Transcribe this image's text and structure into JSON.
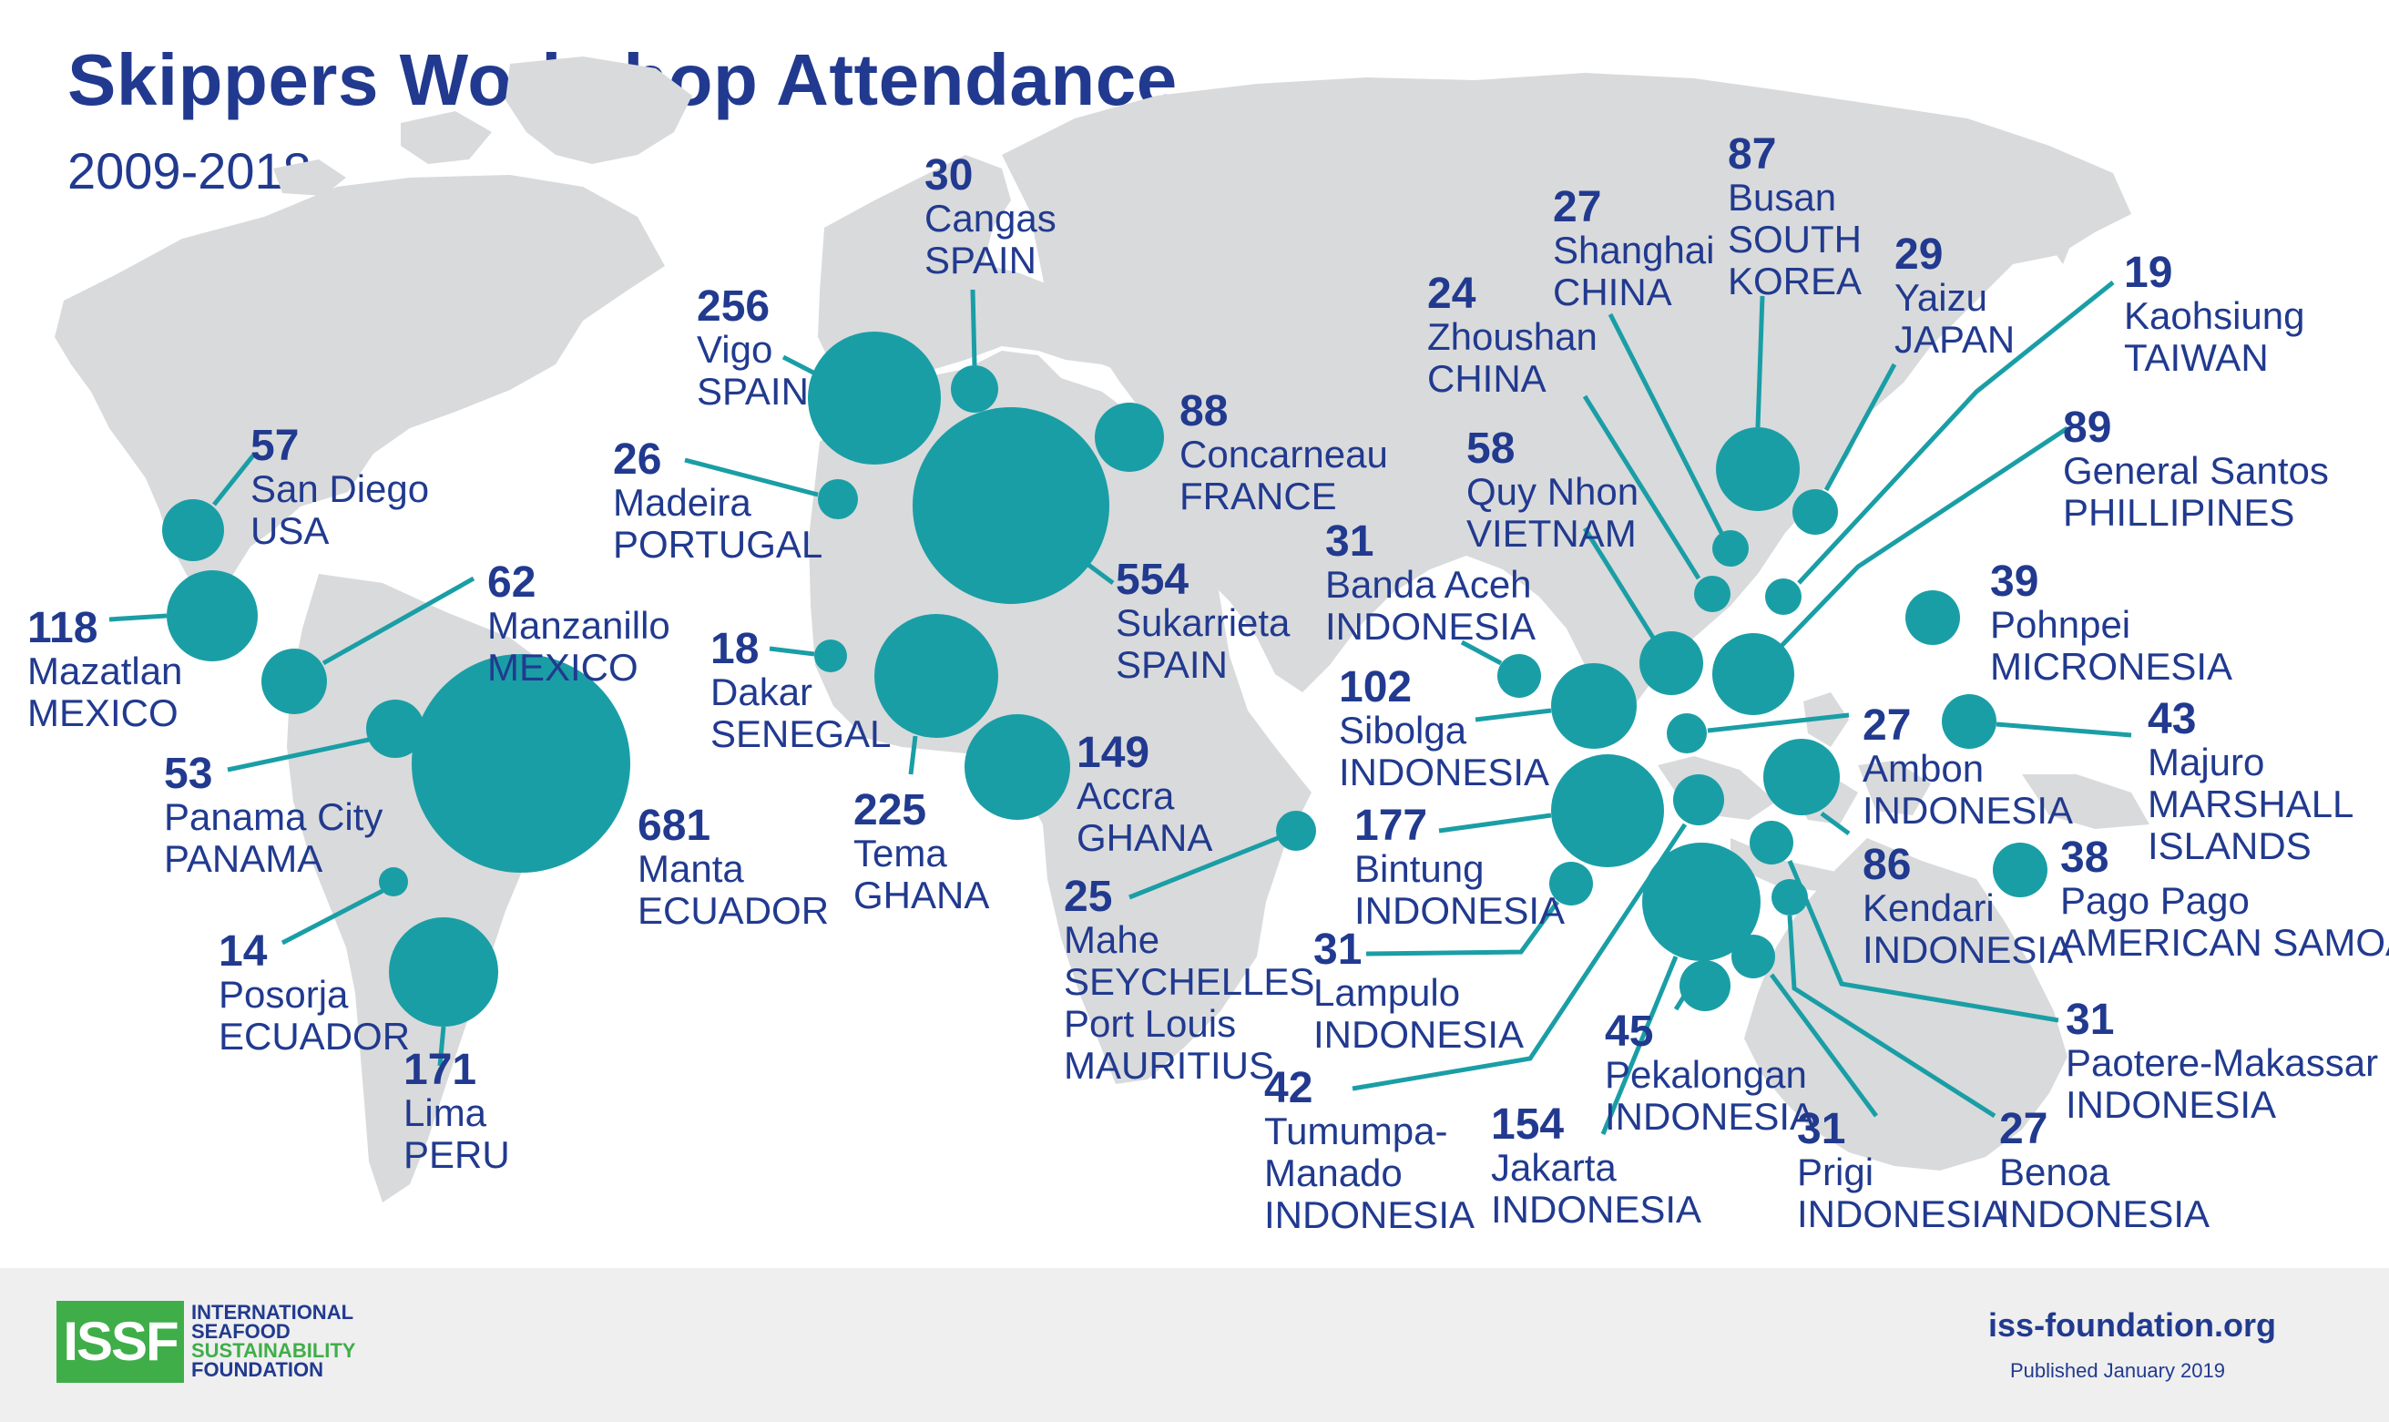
{
  "header": {
    "title": "Skippers Workshop Attendance",
    "subtitle": "2009-2018"
  },
  "map_style": {
    "land_color": "#d9dadb",
    "bubble_color": "#1a9ea6",
    "leader_color": "#1a9ea6",
    "text_color": "#213a8f"
  },
  "locations": [
    {
      "id": "san-diego",
      "value": "57",
      "lines": [
        "San Diego",
        "USA"
      ]
    },
    {
      "id": "mazatlan",
      "value": "118",
      "lines": [
        "Mazatlan",
        "MEXICO"
      ]
    },
    {
      "id": "manzanillo",
      "value": "62",
      "lines": [
        "Manzanillo",
        "MEXICO"
      ]
    },
    {
      "id": "panama-city",
      "value": "53",
      "lines": [
        "Panama City",
        "PANAMA"
      ]
    },
    {
      "id": "manta",
      "value": "681",
      "lines": [
        "Manta",
        "ECUADOR"
      ]
    },
    {
      "id": "posorja",
      "value": "14",
      "lines": [
        "Posorja",
        "ECUADOR"
      ]
    },
    {
      "id": "lima",
      "value": "171",
      "lines": [
        "Lima",
        "PERU"
      ]
    },
    {
      "id": "vigo",
      "value": "256",
      "lines": [
        "Vigo",
        "SPAIN"
      ]
    },
    {
      "id": "cangas",
      "value": "30",
      "lines": [
        "Cangas",
        "SPAIN"
      ]
    },
    {
      "id": "madeira",
      "value": "26",
      "lines": [
        "Madeira",
        "PORTUGAL"
      ]
    },
    {
      "id": "sukarrieta",
      "value": "554",
      "lines": [
        "Sukarrieta",
        "SPAIN"
      ]
    },
    {
      "id": "concarneau",
      "value": "88",
      "lines": [
        "Concarneau",
        "FRANCE"
      ]
    },
    {
      "id": "dakar",
      "value": "18",
      "lines": [
        "Dakar",
        "SENEGAL"
      ]
    },
    {
      "id": "tema",
      "value": "225",
      "lines": [
        "Tema",
        "GHANA"
      ]
    },
    {
      "id": "accra",
      "value": "149",
      "lines": [
        "Accra",
        "GHANA"
      ]
    },
    {
      "id": "mahe",
      "value": "25",
      "lines": [
        "Mahe",
        "SEYCHELLES",
        "Port Louis",
        "MAURITIUS"
      ]
    },
    {
      "id": "zhoushan",
      "value": "24",
      "lines": [
        "Zhoushan",
        "CHINA"
      ]
    },
    {
      "id": "shanghai",
      "value": "27",
      "lines": [
        "Shanghai",
        "CHINA"
      ]
    },
    {
      "id": "busan",
      "value": "87",
      "lines": [
        "Busan",
        "SOUTH",
        "KOREA"
      ]
    },
    {
      "id": "yaizu",
      "value": "29",
      "lines": [
        "Yaizu",
        "JAPAN"
      ]
    },
    {
      "id": "kaohsiung",
      "value": "19",
      "lines": [
        "Kaohsiung",
        "TAIWAN"
      ]
    },
    {
      "id": "quy-nhon",
      "value": "58",
      "lines": [
        "Quy Nhon",
        "VIETNAM"
      ]
    },
    {
      "id": "general-santos",
      "value": "89",
      "lines": [
        "General Santos",
        "PHILLIPINES"
      ]
    },
    {
      "id": "banda-aceh",
      "value": "31",
      "lines": [
        "Banda Aceh",
        "INDONESIA"
      ]
    },
    {
      "id": "pohnpei",
      "value": "39",
      "lines": [
        "Pohnpei",
        "MICRONESIA"
      ]
    },
    {
      "id": "sibolga",
      "value": "102",
      "lines": [
        "Sibolga",
        "INDONESIA"
      ]
    },
    {
      "id": "ambon",
      "value": "27",
      "lines": [
        "Ambon",
        "INDONESIA"
      ]
    },
    {
      "id": "majuro",
      "value": "43",
      "lines": [
        "Majuro",
        "MARSHALL",
        "ISLANDS"
      ]
    },
    {
      "id": "bintung",
      "value": "177",
      "lines": [
        "Bintung",
        "INDONESIA"
      ]
    },
    {
      "id": "kendari",
      "value": "86",
      "lines": [
        "Kendari",
        "INDONESIA"
      ]
    },
    {
      "id": "pago-pago",
      "value": "38",
      "lines": [
        "Pago Pago",
        "AMERICAN SAMOA"
      ]
    },
    {
      "id": "lampulo",
      "value": "31",
      "lines": [
        "Lampulo",
        "INDONESIA"
      ]
    },
    {
      "id": "paotere",
      "value": "31",
      "lines": [
        "Paotere-Makassar",
        "INDONESIA"
      ]
    },
    {
      "id": "tumumpa",
      "value": "42",
      "lines": [
        "Tumumpa-",
        "Manado",
        "INDONESIA"
      ]
    },
    {
      "id": "pekalongan",
      "value": "45",
      "lines": [
        "Pekalongan",
        "INDONESIA"
      ]
    },
    {
      "id": "jakarta",
      "value": "154",
      "lines": [
        "Jakarta",
        "INDONESIA"
      ]
    },
    {
      "id": "prigi",
      "value": "31",
      "lines": [
        "Prigi",
        "INDONESIA"
      ]
    },
    {
      "id": "benoa",
      "value": "27",
      "lines": [
        "Benoa",
        "INDONESIA"
      ]
    }
  ],
  "footer": {
    "logo_mark": "ISSF",
    "logo_lines": [
      "INTERNATIONAL",
      "SEAFOOD",
      "SUSTAINABILITY",
      "FOUNDATION"
    ],
    "website": "iss-foundation.org",
    "published": "Published January 2019"
  }
}
